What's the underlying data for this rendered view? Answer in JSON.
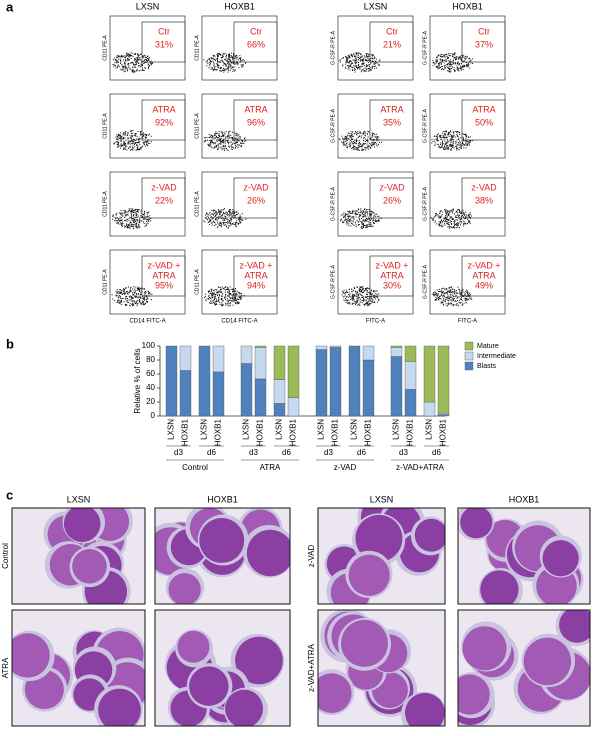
{
  "panel_labels": [
    "a",
    "b",
    "c"
  ],
  "flow": {
    "columns": [
      "LXSN",
      "HOXB1",
      "LXSN",
      "HOXB1"
    ],
    "y_labels": [
      "CD11 PE-A",
      "G-CSF-R PE-A"
    ],
    "x_labels": [
      "CD14 FITC-A",
      "FITC-A"
    ],
    "rows": [
      [
        [
          "Ctr",
          "31%"
        ],
        [
          "Ctr",
          "66%"
        ],
        [
          "Ctr",
          "21%"
        ],
        [
          "Ctr",
          "37%"
        ]
      ],
      [
        [
          "ATRA",
          "92%"
        ],
        [
          "ATRA",
          "96%"
        ],
        [
          "ATRA",
          "35%"
        ],
        [
          "ATRA",
          "50%"
        ]
      ],
      [
        [
          "z-VAD",
          "22%"
        ],
        [
          "z-VAD",
          "26%"
        ],
        [
          "z-VAD",
          "26%"
        ],
        [
          "z-VAD",
          "38%"
        ]
      ],
      [
        [
          "z-VAD +",
          "ATRA",
          "95%"
        ],
        [
          "z-VAD +",
          "ATRA",
          "94%"
        ],
        [
          "z-VAD +",
          "ATRA",
          "30%"
        ],
        [
          "z-VAD +",
          "ATRA",
          "49%"
        ]
      ]
    ]
  },
  "chart_data": {
    "type": "bar",
    "stacked": true,
    "y_label": "Relative % of cells",
    "ylim": [
      0,
      100
    ],
    "yticks": [
      0,
      20,
      40,
      60,
      80,
      100
    ],
    "categories": [
      "LXSN",
      "HOXB1",
      "LXSN",
      "HOXB1",
      "LXSN",
      "HOXB1",
      "LXSN",
      "HOXB1",
      "LXSN",
      "HOXB1",
      "LXSN",
      "HOXB1",
      "LXSN",
      "HOXB1",
      "LXSN",
      "HOXB1"
    ],
    "days": [
      "d3",
      "d6",
      "d3",
      "d6",
      "d3",
      "d6",
      "d3",
      "d6"
    ],
    "groups": [
      "Control",
      "ATRA",
      "z-VAD",
      "z-VAD+ATRA"
    ],
    "series": [
      {
        "name": "Blasts",
        "color": "#4f81bd",
        "values": [
          100,
          65,
          100,
          63,
          75,
          53,
          18,
          0,
          95,
          98,
          100,
          80,
          85,
          38,
          0,
          2
        ]
      },
      {
        "name": "Intermediate",
        "color": "#c6d9f1",
        "values": [
          0,
          35,
          0,
          37,
          25,
          45,
          34,
          26,
          5,
          2,
          0,
          20,
          13,
          40,
          20,
          2
        ]
      },
      {
        "name": "Mature",
        "color": "#9bbb59",
        "values": [
          0,
          0,
          0,
          0,
          0,
          2,
          48,
          74,
          0,
          0,
          0,
          0,
          2,
          22,
          80,
          96
        ]
      }
    ]
  },
  "micrographs": {
    "columns": [
      "LXSN",
      "HOXB1",
      "LXSN",
      "HOXB1"
    ],
    "row_labels": [
      "Control",
      "ATRA",
      "z-VAD",
      "z-VAD+ATRA"
    ]
  }
}
